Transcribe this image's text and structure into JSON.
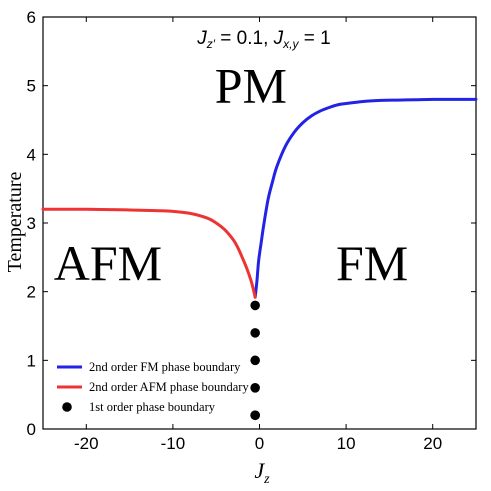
{
  "chart_data": {
    "type": "line",
    "title_parts": {
      "j1": "J",
      "j1_sub": "z′",
      "eq1": " = 0.1, ",
      "j2": "J",
      "j2_sub": "x,y",
      "eq2": " = 1"
    },
    "xlabel": "J",
    "xlabel_sub": "z",
    "ylabel": "Temperature",
    "xlim": [
      -25,
      25
    ],
    "ylim": [
      0,
      6
    ],
    "xticks": [
      -20,
      -10,
      0,
      10,
      20
    ],
    "yticks": [
      0,
      1,
      2,
      3,
      4,
      5,
      6
    ],
    "grid": false,
    "legend_position": "bottom-left",
    "regions": [
      {
        "label": "PM",
        "x": -1,
        "y": 5.0
      },
      {
        "label": "AFM",
        "x": -17.5,
        "y": 2.42
      },
      {
        "label": "FM",
        "x": 13,
        "y": 2.42
      }
    ],
    "series": [
      {
        "name": "2nd order FM phase boundary",
        "type": "line",
        "color": "#2323e6",
        "x": [
          -0.5,
          -0.3,
          -0.1,
          0.2,
          0.5,
          1,
          1.5,
          2,
          3,
          4,
          5,
          6,
          7,
          8,
          9,
          10,
          12,
          14,
          16,
          18,
          20,
          22,
          25
        ],
        "y": [
          1.92,
          2.15,
          2.45,
          2.72,
          2.98,
          3.35,
          3.6,
          3.82,
          4.12,
          4.32,
          4.46,
          4.56,
          4.63,
          4.68,
          4.72,
          4.74,
          4.77,
          4.785,
          4.79,
          4.795,
          4.8,
          4.8,
          4.8
        ]
      },
      {
        "name": "2nd order AFM phase boundary",
        "type": "line",
        "color": "#ee3333",
        "x": [
          -25,
          -20,
          -15,
          -12,
          -10,
          -8,
          -6,
          -5,
          -4,
          -3,
          -2.5,
          -2,
          -1.5,
          -1,
          -0.7,
          -0.5
        ],
        "y": [
          3.2,
          3.2,
          3.19,
          3.18,
          3.17,
          3.14,
          3.07,
          3.0,
          2.9,
          2.75,
          2.64,
          2.5,
          2.35,
          2.17,
          2.03,
          1.92
        ]
      },
      {
        "name": "1st order phase boundary",
        "type": "scatter",
        "color": "#000000",
        "x": [
          -0.5,
          -0.5,
          -0.5,
          -0.5,
          -0.5,
          -0.5
        ],
        "y": [
          1.8,
          1.4,
          1.0,
          0.6,
          0.2,
          0.2
        ]
      }
    ]
  }
}
